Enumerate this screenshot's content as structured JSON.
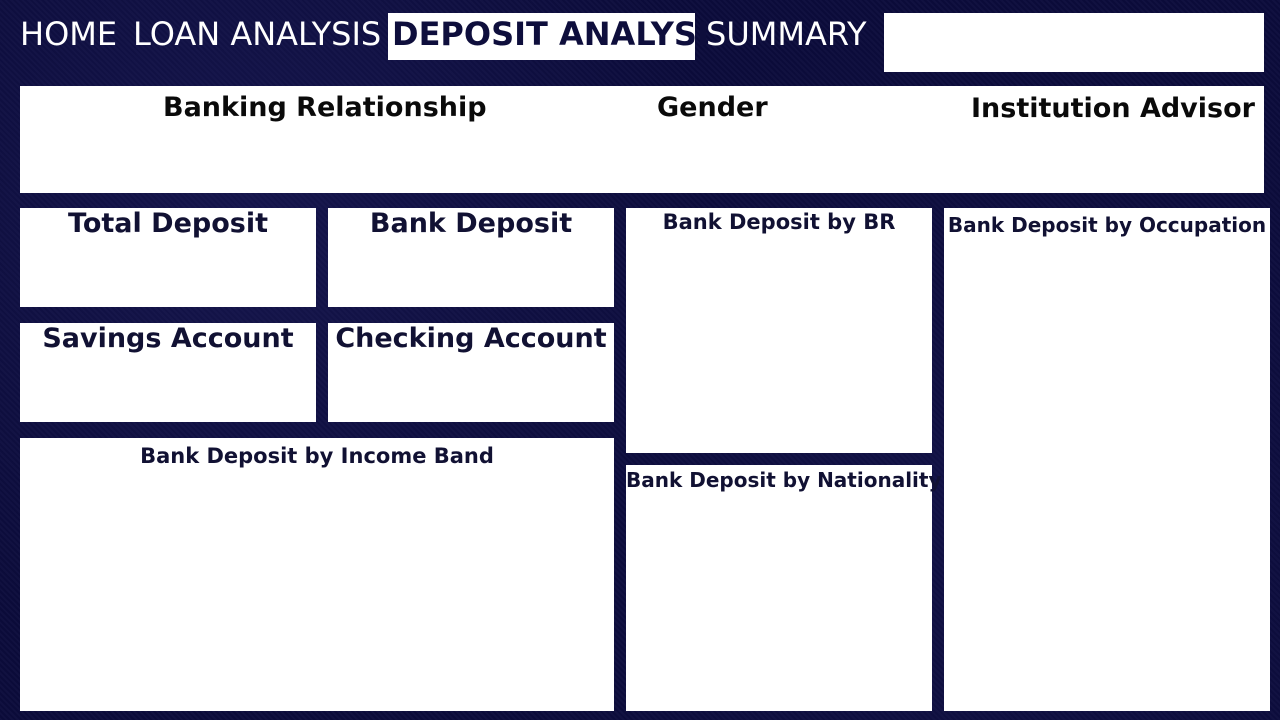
{
  "nav": {
    "home": "HOME",
    "loan_analysis": "LOAN ANALYSIS",
    "deposit_analysis": "DEPOSIT ANALYSIS",
    "summary": "SUMMARY"
  },
  "filters": {
    "banking_relationship": "Banking Relationship",
    "gender": "Gender",
    "institution_advisor": "Institution Advisor"
  },
  "cards": {
    "total_deposit": "Total Deposit",
    "bank_deposit": "Bank Deposit",
    "savings_account": "Savings Account",
    "checking_account": "Checking Account"
  },
  "charts": {
    "by_br": "Bank Deposit by BR",
    "by_occupation": "Bank Deposit by Occupation",
    "by_income_band": "Bank Deposit by Income Band",
    "by_nationality": "Bank Deposit by Nationality"
  },
  "colors": {
    "background": "#0b0b3b",
    "panel": "#ffffff",
    "title_text": "#111133"
  }
}
